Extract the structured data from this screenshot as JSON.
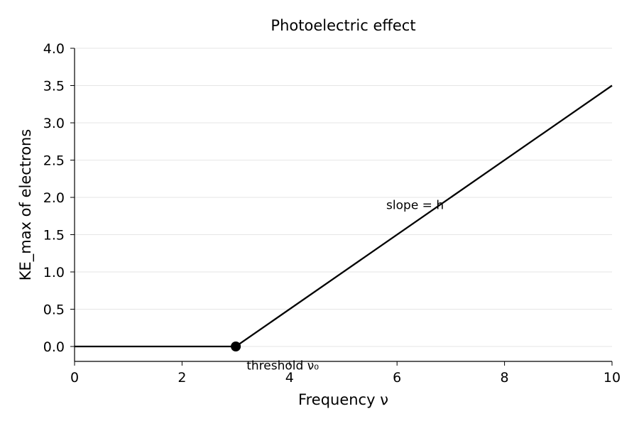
{
  "chart_data": {
    "type": "line",
    "title": "Photoelectric effect",
    "xlabel": "Frequency ν",
    "ylabel": "KE_max of electrons",
    "xlim": [
      0,
      10
    ],
    "ylim": [
      -0.2,
      4.0
    ],
    "x_ticks": [
      0,
      2,
      4,
      6,
      8,
      10
    ],
    "x_tick_labels": [
      "0",
      "2",
      "4",
      "6",
      "8",
      "10"
    ],
    "y_ticks": [
      0.0,
      0.5,
      1.0,
      1.5,
      2.0,
      2.5,
      3.0,
      3.5,
      4.0
    ],
    "y_tick_labels": [
      "0.0",
      "0.5",
      "1.0",
      "1.5",
      "2.0",
      "2.5",
      "3.0",
      "3.5",
      "4.0"
    ],
    "grid": "horizontal",
    "series": [
      {
        "x": [
          0,
          3,
          10
        ],
        "y": [
          0,
          0,
          3.5
        ],
        "color": "#000000"
      }
    ],
    "points": [
      {
        "x": 3,
        "y": 0,
        "color": "#000000"
      }
    ],
    "annotations": [
      {
        "text": "threshold ν₀",
        "x": 3.2,
        "y": -0.25
      },
      {
        "text": "slope = h",
        "x": 5.8,
        "y": 1.9
      }
    ]
  }
}
